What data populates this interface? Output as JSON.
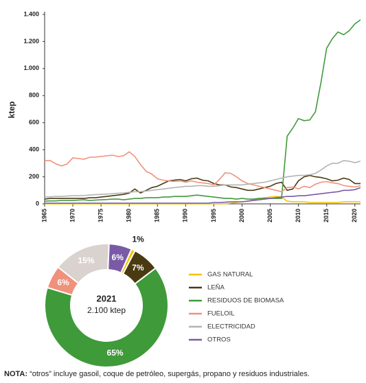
{
  "chart_data": [
    {
      "type": "line",
      "ylabel": "ktep",
      "xlim": [
        1965,
        2021
      ],
      "xticks": [
        1965,
        1970,
        1975,
        1980,
        1985,
        1990,
        1995,
        2000,
        2005,
        2010,
        2015,
        2020
      ],
      "ylim": [
        0,
        1400
      ],
      "yticks": [
        0,
        200,
        400,
        600,
        800,
        {
          "value": 1000,
          "label": "1.000"
        },
        {
          "value": 1200,
          "label": "1.200"
        },
        {
          "value": 1400,
          "label": "1.400"
        }
      ],
      "x": [
        1965,
        1966,
        1967,
        1968,
        1969,
        1970,
        1971,
        1972,
        1973,
        1974,
        1975,
        1976,
        1977,
        1978,
        1979,
        1980,
        1981,
        1982,
        1983,
        1984,
        1985,
        1986,
        1987,
        1988,
        1989,
        1990,
        1991,
        1992,
        1993,
        1994,
        1995,
        1996,
        1997,
        1998,
        1999,
        2000,
        2001,
        2002,
        2003,
        2004,
        2005,
        2006,
        2007,
        2008,
        2009,
        2010,
        2011,
        2012,
        2013,
        2014,
        2015,
        2016,
        2017,
        2018,
        2019,
        2020,
        2021
      ],
      "series": [
        {
          "name": "GAS NATURAL",
          "color": "#f2c200",
          "values": [
            0,
            0,
            0,
            0,
            0,
            0,
            0,
            0,
            0,
            0,
            0,
            0,
            0,
            0,
            0,
            0,
            0,
            0,
            0,
            0,
            0,
            0,
            0,
            0,
            0,
            0,
            0,
            0,
            0,
            0,
            0,
            0,
            0,
            5,
            10,
            15,
            20,
            30,
            40,
            45,
            50,
            55,
            50,
            20,
            15,
            15,
            15,
            10,
            10,
            10,
            10,
            10,
            10,
            15,
            15,
            15,
            15
          ]
        },
        {
          "name": "LEÑA",
          "color": "#4a3a12",
          "values": [
            35,
            40,
            40,
            40,
            40,
            40,
            40,
            40,
            45,
            45,
            50,
            55,
            60,
            65,
            70,
            80,
            110,
            80,
            100,
            120,
            130,
            150,
            170,
            175,
            180,
            170,
            185,
            190,
            175,
            170,
            150,
            140,
            140,
            125,
            120,
            110,
            100,
            100,
            110,
            120,
            130,
            150,
            160,
            100,
            110,
            170,
            200,
            210,
            200,
            195,
            185,
            170,
            175,
            190,
            180,
            150,
            150
          ]
        },
        {
          "name": "RESIDUOS DE BIOMASA",
          "color": "#3f9a3a",
          "values": [
            20,
            22,
            22,
            25,
            25,
            25,
            28,
            30,
            25,
            28,
            30,
            32,
            35,
            35,
            30,
            35,
            40,
            40,
            45,
            45,
            45,
            50,
            50,
            55,
            55,
            55,
            60,
            65,
            60,
            55,
            50,
            45,
            40,
            40,
            35,
            40,
            35,
            35,
            40,
            40,
            40,
            40,
            40,
            500,
            560,
            630,
            615,
            620,
            680,
            900,
            1150,
            1220,
            1270,
            1250,
            1280,
            1330,
            1360
          ]
        },
        {
          "name": "FUELOIL",
          "color": "#f0917b",
          "values": [
            320,
            320,
            295,
            280,
            295,
            340,
            335,
            330,
            345,
            345,
            350,
            355,
            360,
            350,
            355,
            385,
            350,
            290,
            240,
            220,
            185,
            175,
            170,
            165,
            170,
            160,
            170,
            160,
            155,
            150,
            140,
            180,
            230,
            225,
            200,
            170,
            150,
            140,
            130,
            120,
            110,
            100,
            90,
            120,
            125,
            110,
            130,
            120,
            145,
            160,
            165,
            155,
            150,
            135,
            130,
            125,
            135
          ]
        },
        {
          "name": "ELECTRICIDAD",
          "color": "#b3b3b3",
          "values": [
            50,
            52,
            55,
            55,
            58,
            60,
            60,
            62,
            65,
            68,
            70,
            72,
            75,
            78,
            80,
            85,
            90,
            90,
            95,
            100,
            105,
            110,
            115,
            120,
            125,
            130,
            130,
            135,
            135,
            130,
            130,
            135,
            140,
            140,
            140,
            140,
            145,
            150,
            155,
            160,
            170,
            180,
            190,
            200,
            205,
            210,
            210,
            215,
            225,
            250,
            280,
            300,
            300,
            320,
            315,
            305,
            315
          ]
        },
        {
          "name": "OTROS",
          "color": "#7a5aa6",
          "values": [
            5,
            5,
            5,
            5,
            5,
            5,
            5,
            5,
            5,
            5,
            5,
            5,
            5,
            5,
            5,
            5,
            5,
            5,
            5,
            5,
            5,
            5,
            5,
            5,
            5,
            5,
            5,
            5,
            5,
            5,
            10,
            10,
            12,
            15,
            15,
            15,
            20,
            25,
            30,
            35,
            40,
            45,
            50,
            55,
            55,
            60,
            60,
            65,
            70,
            75,
            80,
            85,
            90,
            100,
            100,
            105,
            120
          ]
        }
      ]
    },
    {
      "type": "pie",
      "center_title": "2021",
      "center_text": "2.100 ktep",
      "values": [
        1,
        7,
        65,
        6,
        15,
        6
      ],
      "value_labels": [
        "1%",
        "7%",
        "65%",
        "6%",
        "15%",
        "6%"
      ],
      "colors": [
        "#f2c200",
        "#4a3a12",
        "#3f9a3a",
        "#f0917b",
        "#d9d2cf",
        "#7a5aa6"
      ]
    }
  ],
  "note": {
    "label": "NOTA:",
    "text": "“otros” incluye gasoil, coque de petróleo, supergás, propano y residuos industriales."
  }
}
